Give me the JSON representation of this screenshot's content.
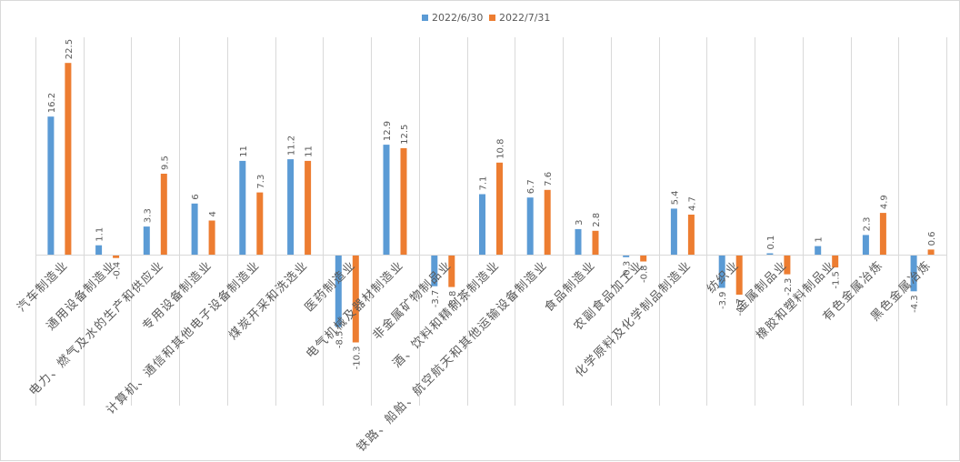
{
  "chart_data": {
    "type": "bar",
    "legend_position": "top-center",
    "grid": "vertical",
    "series": [
      {
        "name": "2022/6/30",
        "color": "#5B9BD5",
        "values": [
          16.2,
          1.1,
          3.3,
          6,
          11,
          11.2,
          -8.5,
          12.9,
          -3.7,
          7.1,
          6.7,
          3,
          -0.3,
          5.4,
          -3.9,
          0.1,
          1,
          2.3,
          -4.3
        ]
      },
      {
        "name": "2022/7/31",
        "color": "#ED7D31",
        "values": [
          22.5,
          -0.4,
          9.5,
          4,
          7.3,
          11,
          -10.3,
          12.5,
          -3.8,
          10.8,
          7.6,
          2.8,
          -0.8,
          4.7,
          -4.7,
          -2.3,
          -1.5,
          4.9,
          0.6
        ]
      }
    ],
    "data_labels": [
      [
        "16.2",
        "1.1",
        "3.3",
        "6",
        "11",
        "11.2",
        "-8.5",
        "12.9",
        "-3.7",
        "7.1",
        "6.7",
        "3",
        "-0.3",
        "5.4",
        "-3.9",
        "0.1",
        "1",
        "2.3",
        "-4.3"
      ],
      [
        "22.5",
        "-0.4",
        "9.5",
        "4",
        "7.3",
        "11",
        "-10.3",
        "12.5",
        "-3.8",
        "10.8",
        "7.6",
        "2.8",
        "-0.8",
        "4.7",
        "-4.7",
        "-2.3",
        "-1.5",
        "4.9",
        "0.6"
      ]
    ],
    "categories": [
      "汽车制造业",
      "通用设备制造业",
      "电力、燃气及水的生产和供应业",
      "专用设备制造业",
      "计算机、通信和其他电子设备制造业",
      "煤炭开采和洗选业",
      "医药制造业",
      "电气机械及器材制造业",
      "非金属矿物制品业",
      "酒、饮料和精制茶制造业",
      "铁路、船舶、航空航天和其他运输设备制造业",
      "食品制造业",
      "农副食品加工业",
      "化学原料及化学制品制造业",
      "纺织业",
      "金属制品业",
      "橡胶和塑料制品业",
      "有色金属冶炼",
      "黑色金属冶炼"
    ],
    "ylim": [
      -11,
      24
    ]
  }
}
